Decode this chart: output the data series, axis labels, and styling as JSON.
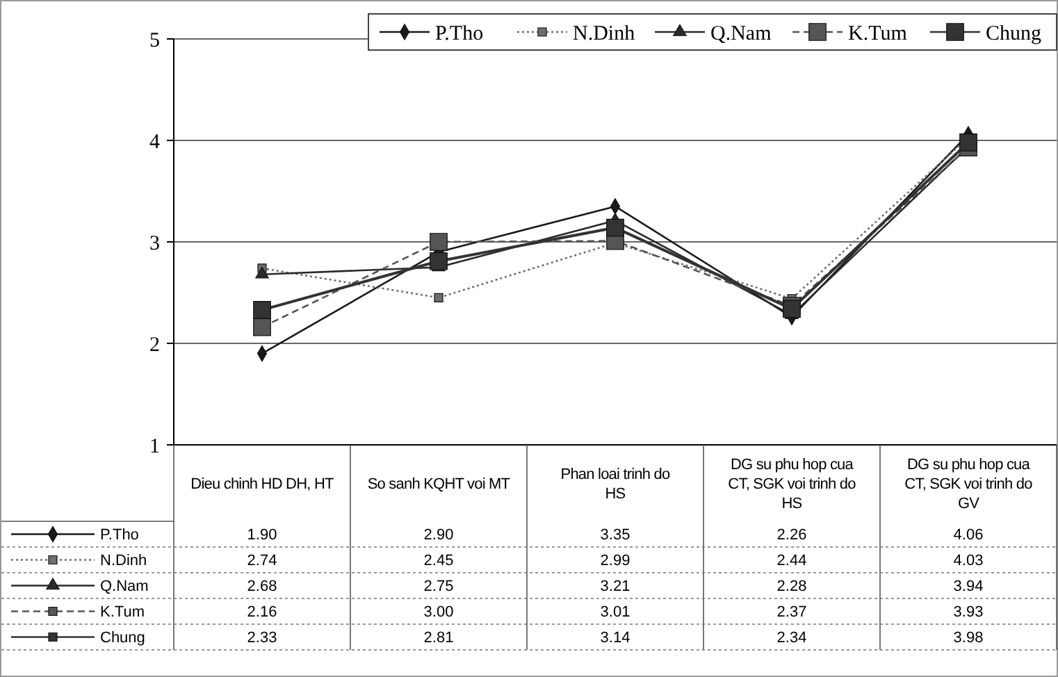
{
  "chart_data": {
    "type": "line",
    "categories": [
      "Dieu chinh HD DH, HT",
      "So sanh KQHT voi MT",
      "Phan loai trinh do HS",
      "DG su phu hop cua CT, SGK voi trinh do HS",
      "DG su phu hop cua CT, SGK voi trinh do GV"
    ],
    "series": [
      {
        "name": "P.Tho",
        "color": "#1a1a1a",
        "marker": "diamond",
        "line_style": "solid",
        "values": [
          1.9,
          2.9,
          3.35,
          2.26,
          4.06
        ],
        "value_labels": [
          "1.90",
          "2.90",
          "3.35",
          "2.26",
          "4.06"
        ]
      },
      {
        "name": "N.Dinh",
        "color": "#6e6e6e",
        "marker": "square",
        "line_style": "dotted",
        "values": [
          2.74,
          2.45,
          2.99,
          2.44,
          4.03
        ],
        "value_labels": [
          "2.74",
          "2.45",
          "2.99",
          "2.44",
          "4.03"
        ]
      },
      {
        "name": "Q.Nam",
        "color": "#2a2a2a",
        "marker": "triangle",
        "line_style": "solid",
        "values": [
          2.68,
          2.75,
          3.21,
          2.28,
          3.94
        ],
        "value_labels": [
          "2.68",
          "2.75",
          "3.21",
          "2.28",
          "3.94"
        ]
      },
      {
        "name": "K.Tum",
        "color": "#555555",
        "marker": "square",
        "line_style": "dashed",
        "values": [
          2.16,
          3.0,
          3.01,
          2.37,
          3.93
        ],
        "value_labels": [
          "2.16",
          "3.00",
          "3.01",
          "2.37",
          "3.93"
        ]
      },
      {
        "name": "Chung",
        "color": "#333333",
        "marker": "square",
        "line_style": "solid",
        "values": [
          2.33,
          2.81,
          3.14,
          2.34,
          3.98
        ],
        "value_labels": [
          "2.33",
          "2.81",
          "3.14",
          "2.34",
          "3.98"
        ]
      }
    ],
    "ylim": [
      1,
      5
    ],
    "yticks": [
      1,
      2,
      3,
      4,
      5
    ],
    "grid": "y",
    "legend": "top"
  }
}
